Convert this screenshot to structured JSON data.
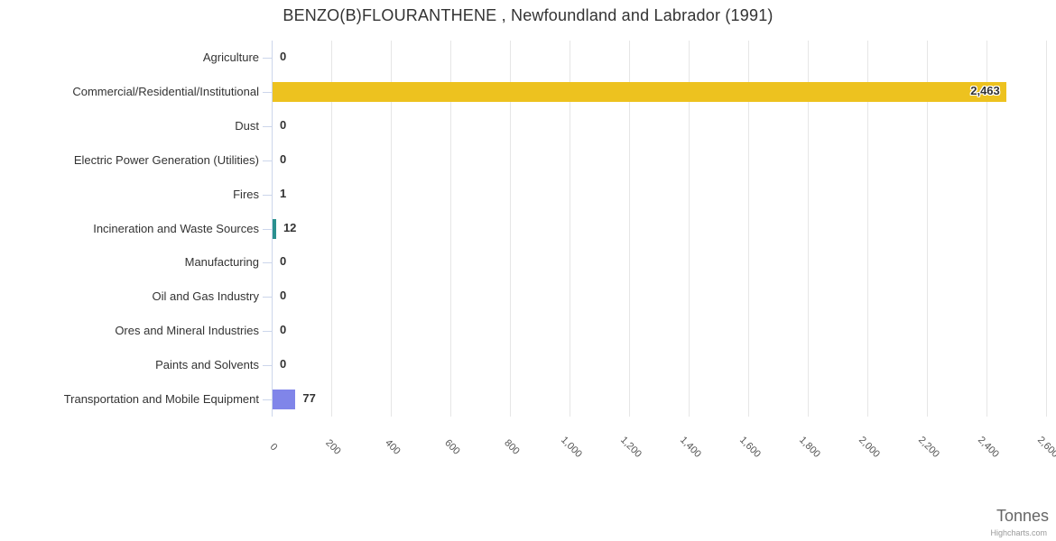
{
  "chart_data": {
    "type": "bar",
    "orientation": "horizontal",
    "title": "BENZO(B)FLOURANTHENE , Newfoundland and Labrador (1991)",
    "categories": [
      "Agriculture",
      "Commercial/Residential/Institutional",
      "Dust",
      "Electric Power Generation (Utilities)",
      "Fires",
      "Incineration and Waste Sources",
      "Manufacturing",
      "Oil and Gas Industry",
      "Ores and Mineral Industries",
      "Paints and Solvents",
      "Transportation and Mobile Equipment"
    ],
    "values": [
      0,
      2463,
      0,
      0,
      1,
      12,
      0,
      0,
      0,
      0,
      77
    ],
    "value_labels": [
      "0",
      "2,463",
      "0",
      "0",
      "1",
      "12",
      "0",
      "0",
      "0",
      "0",
      "77"
    ],
    "bar_colors": [
      null,
      "#edc21f",
      null,
      null,
      null,
      "#2b908f",
      null,
      null,
      null,
      null,
      "#8085e9"
    ],
    "xlabel": "Tonnes",
    "ylabel": "",
    "xlim": [
      0,
      2600
    ],
    "tick_interval": 200,
    "tick_labels": [
      "0",
      "200",
      "400",
      "600",
      "800",
      "1,000",
      "1,200",
      "1,400",
      "1,600",
      "1,800",
      "2,000",
      "2,200",
      "2,400",
      "2,600"
    ],
    "grid": "vertical",
    "legend": "none",
    "credit": "Highcharts.com",
    "colors": {
      "grid": "#e6e6e6",
      "axis_line": "#ccd6eb",
      "tick": "#ccd6eb",
      "title_text": "#333333",
      "category_text": "#333333",
      "data_label_text": "#333333",
      "axis_label_text": "#555555",
      "axis_title_text": "#666666",
      "credit_text": "#999999"
    }
  }
}
